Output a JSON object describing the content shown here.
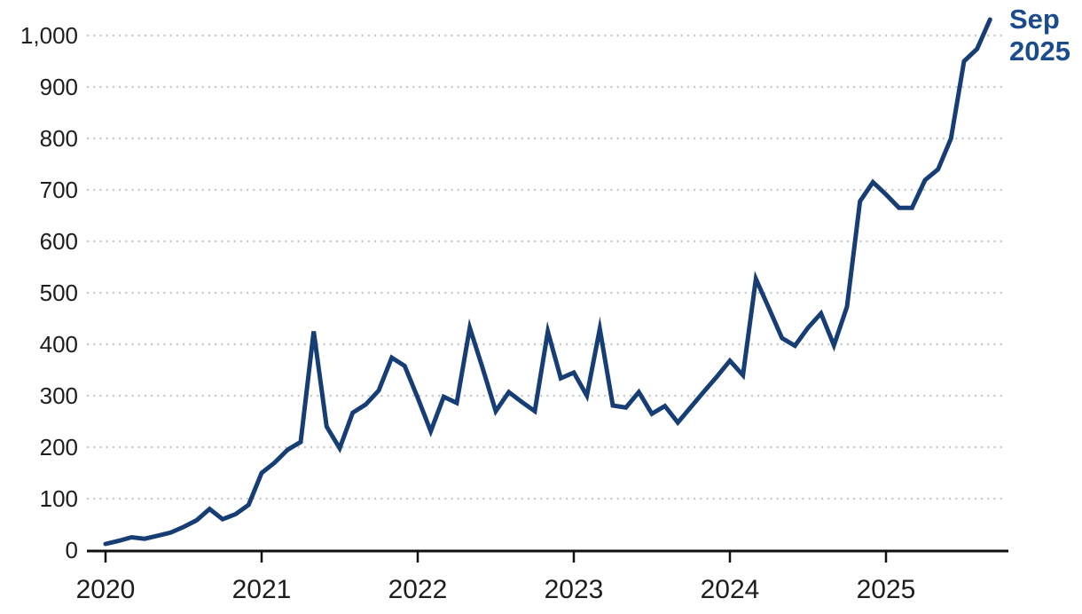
{
  "chart_data": {
    "type": "line",
    "title": "",
    "xlabel": "",
    "ylabel": "",
    "x_axis": {
      "tick_labels": [
        "2020",
        "2021",
        "2022",
        "2023",
        "2024",
        "2025"
      ],
      "unit": "month",
      "first_point": "Jan 2020",
      "last_point": "Sep 2025"
    },
    "y_axis": {
      "tick_labels": [
        "0",
        "100",
        "200",
        "300",
        "400",
        "500",
        "600",
        "700",
        "800",
        "900",
        "1,000"
      ],
      "min": 0,
      "max": 1000,
      "step": 100,
      "thousands_separator": ","
    },
    "grid": {
      "horizontal": true,
      "vertical": false,
      "style": "dotted"
    },
    "legend": "none",
    "series": [
      {
        "name": "monthly-value",
        "values_by_year": {
          "2020": [
            12,
            18,
            25,
            22,
            28,
            34,
            45,
            58,
            80,
            60,
            70,
            88
          ],
          "2021": [
            150,
            170,
            195,
            210,
            425,
            240,
            198,
            267,
            283,
            310,
            374,
            358
          ],
          "2022": [
            296,
            231,
            298,
            286,
            432,
            353,
            270,
            307,
            288,
            270,
            425,
            334
          ],
          "2023": [
            345,
            300,
            430,
            281,
            277,
            307,
            265,
            280,
            248,
            278,
            308,
            337
          ],
          "2024": [
            368,
            340,
            527,
            470,
            412,
            397,
            432,
            460,
            398,
            473,
            678,
            715
          ],
          "2025": [
            691,
            665,
            665,
            719,
            740,
            800,
            950,
            974,
            1031
          ]
        },
        "year_order": [
          "2020",
          "2021",
          "2022",
          "2023",
          "2024",
          "2025"
        ]
      }
    ],
    "annotation": {
      "line1": "Sep",
      "line2": "2025"
    },
    "colors": {
      "line": "#163E75",
      "annotation_text": "#1A4B8D",
      "axis": "#111111",
      "tick_labels": "#1D1D1F",
      "gridlines": "#C9C9C9"
    }
  }
}
